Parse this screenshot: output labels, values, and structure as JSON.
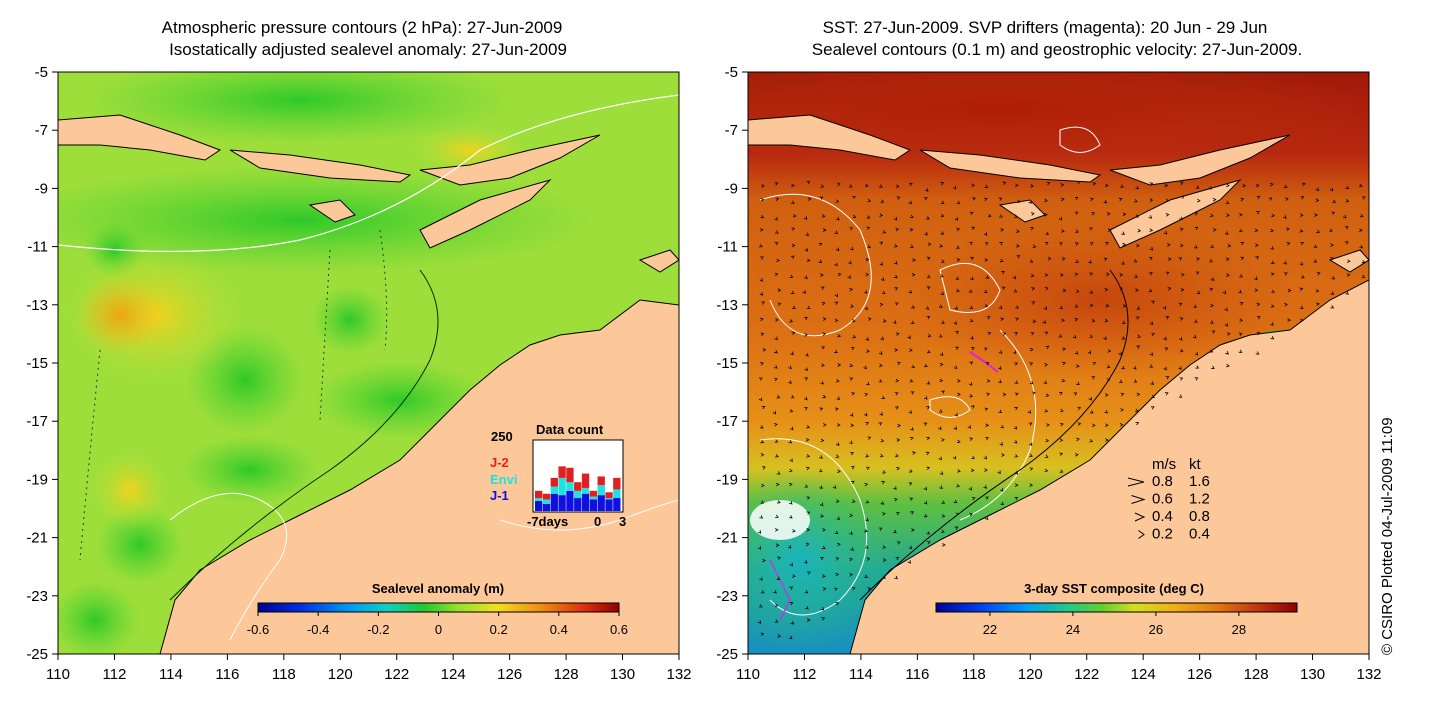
{
  "left_panel": {
    "title_line1": "Atmospheric pressure contours (2 hPa): 27-Jun-2009",
    "title_line2": "Isostatically adjusted sealevel anomaly: 27-Jun-2009",
    "colorbar": {
      "title": "Sealevel anomaly (m)",
      "labels": [
        "-0.6",
        "-0.4",
        "-0.2",
        "0",
        "0.2",
        "0.4",
        "0.6"
      ]
    },
    "inset": {
      "title": "Data count",
      "max_label": "250",
      "legend": [
        {
          "label": "J-2",
          "color": "#e02020"
        },
        {
          "label": "Envi",
          "color": "#20e0e0"
        },
        {
          "label": "J-1",
          "color": "#1010e0"
        }
      ],
      "x_labels": [
        "-7days",
        "0",
        "3"
      ],
      "bars": [
        {
          "j1": 35,
          "envi": 10,
          "j2": 25
        },
        {
          "j1": 25,
          "envi": 15,
          "j2": 20
        },
        {
          "j1": 60,
          "envi": 25,
          "j2": 30
        },
        {
          "j1": 55,
          "envi": 60,
          "j2": 40
        },
        {
          "j1": 70,
          "envi": 30,
          "j2": 50
        },
        {
          "j1": 45,
          "envi": 25,
          "j2": 30
        },
        {
          "j1": 60,
          "envi": 20,
          "j2": 50
        },
        {
          "j1": 40,
          "envi": 10,
          "j2": 20
        },
        {
          "j1": 55,
          "envi": 35,
          "j2": 30
        },
        {
          "j1": 40,
          "envi": 5,
          "j2": 20
        },
        {
          "j1": 45,
          "envi": 30,
          "j2": 40
        }
      ]
    }
  },
  "right_panel": {
    "title_line1": "SST: 27-Jun-2009. SVP drifters (magenta): 20 Jun - 29 Jun",
    "title_line2": "Sealevel contours (0.1 m) and geostrophic velocity: 27-Jun-2009.",
    "colorbar": {
      "title": "3-day SST composite (deg C)",
      "labels": [
        "22",
        "24",
        "26",
        "28"
      ]
    },
    "velocity_legend": {
      "header_ms": "m/s",
      "header_kt": "kt",
      "rows": [
        {
          "ms": "0.8",
          "kt": "1.6",
          "frac": 1.0
        },
        {
          "ms": "0.6",
          "kt": "1.2",
          "frac": 0.75
        },
        {
          "ms": "0.4",
          "kt": "0.8",
          "frac": 0.5
        },
        {
          "ms": "0.2",
          "kt": "0.4",
          "frac": 0.25
        }
      ]
    }
  },
  "axes": {
    "lon": [
      110,
      112,
      114,
      116,
      118,
      120,
      122,
      124,
      126,
      128,
      130,
      132
    ],
    "lat": [
      -5,
      -7,
      -9,
      -11,
      -13,
      -15,
      -17,
      -19,
      -21,
      -23,
      -25
    ],
    "lon_range": [
      110,
      132
    ],
    "lat_range": [
      -5,
      -25
    ]
  },
  "credit": "© CSIRO Plotted 04-Jul-2009 11:09"
}
